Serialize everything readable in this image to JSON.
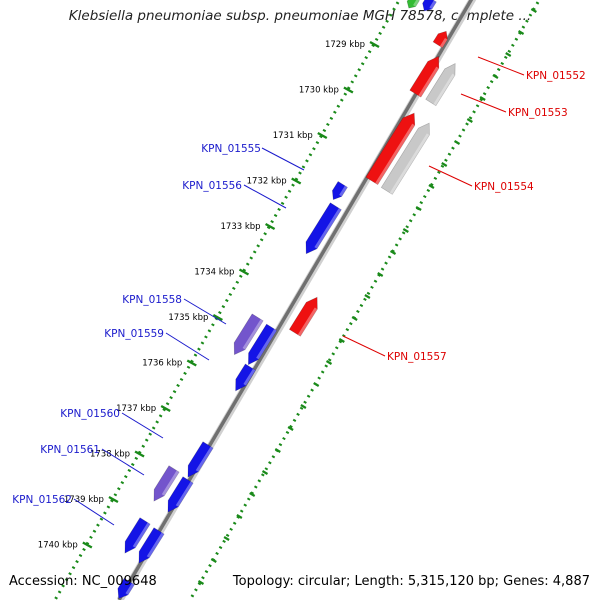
{
  "title": "Klebsiella pneumoniae subsp. pneumoniae MGH 78578, complete ...",
  "accession": "Accession: NC_009648",
  "summary": "Topology: circular; Length: 5,315,120 bp; Genes: 4,887",
  "colors": {
    "forward_gene": "#1414e6",
    "reverse_gene": "#ee1111",
    "selected_gene": "#7355cc",
    "pseudo_gene": "#c8c8c8",
    "tick": "#1a8a1a",
    "backbone": "#888888"
  },
  "ticks": [
    {
      "label": "1729 kbp",
      "kbp": 1729
    },
    {
      "label": "1730 kbp",
      "kbp": 1730
    },
    {
      "label": "1731 kbp",
      "kbp": 1731
    },
    {
      "label": "1732 kbp",
      "kbp": 1732
    },
    {
      "label": "1733 kbp",
      "kbp": 1733
    },
    {
      "label": "1734 kbp",
      "kbp": 1734
    },
    {
      "label": "1735 kbp",
      "kbp": 1735
    },
    {
      "label": "1736 kbp",
      "kbp": 1736
    },
    {
      "label": "1737 kbp",
      "kbp": 1737
    },
    {
      "label": "1738 kbp",
      "kbp": 1738
    },
    {
      "label": "1739 kbp",
      "kbp": 1739
    },
    {
      "label": "1740 kbp",
      "kbp": 1740
    }
  ],
  "gene_labels": [
    {
      "name": "KPN_01552",
      "strand": "reverse"
    },
    {
      "name": "KPN_01553",
      "strand": "reverse"
    },
    {
      "name": "KPN_01554",
      "strand": "reverse"
    },
    {
      "name": "KPN_01555",
      "strand": "forward"
    },
    {
      "name": "KPN_01556",
      "strand": "forward"
    },
    {
      "name": "KPN_01557",
      "strand": "reverse"
    },
    {
      "name": "KPN_01558",
      "strand": "forward"
    },
    {
      "name": "KPN_01559",
      "strand": "forward"
    },
    {
      "name": "KPN_01560",
      "strand": "forward"
    },
    {
      "name": "KPN_01561",
      "strand": "forward"
    },
    {
      "name": "KPN_01562",
      "strand": "forward"
    }
  ]
}
